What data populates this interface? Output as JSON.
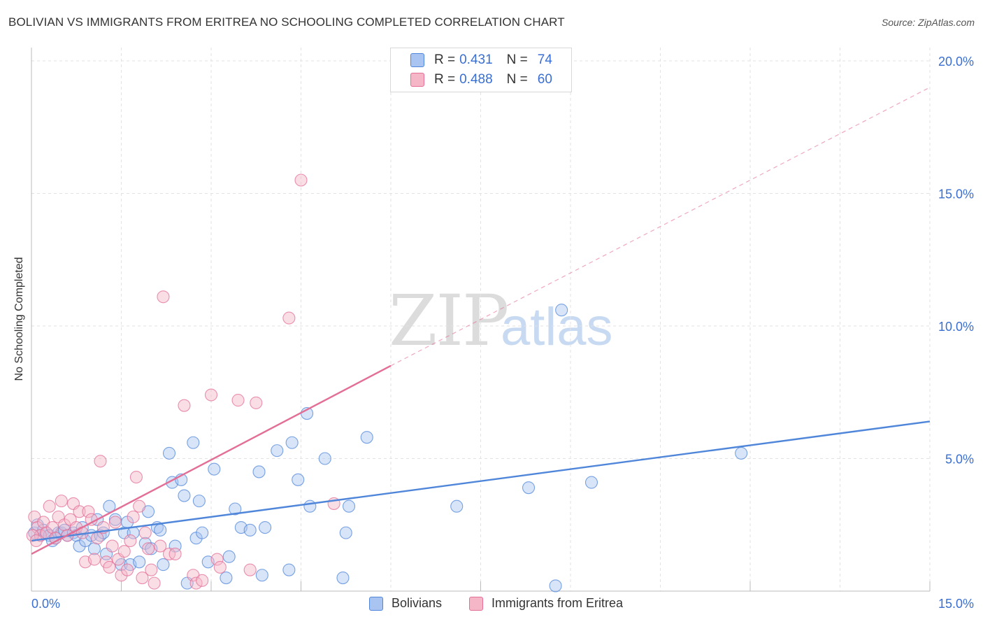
{
  "header": {
    "title": "BOLIVIAN VS IMMIGRANTS FROM ERITREA NO SCHOOLING COMPLETED CORRELATION CHART",
    "source": "Source: ZipAtlas.com"
  },
  "watermark": {
    "zip": "ZIP",
    "atlas": "atlas"
  },
  "legend": {
    "rows": [
      {
        "r_label": "R =",
        "r_value": "0.431",
        "n_label": "N =",
        "n_value": "74",
        "color": "#a9c4f0"
      },
      {
        "r_label": "R =",
        "r_value": "0.488",
        "n_label": "N =",
        "n_value": "60",
        "color": "#f5b6c8"
      }
    ]
  },
  "bottom_legend": {
    "items": [
      {
        "label": "Bolivians",
        "color": "#a9c4f0"
      },
      {
        "label": "Immigrants from Eritrea",
        "color": "#f5b6c8"
      }
    ]
  },
  "chart_data": {
    "type": "scatter",
    "title": "BOLIVIAN VS IMMIGRANTS FROM ERITREA NO SCHOOLING COMPLETED CORRELATION CHART",
    "xlabel": "",
    "ylabel": "No Schooling Completed",
    "xlim": [
      0,
      15
    ],
    "ylim": [
      0,
      20.5
    ],
    "x_tick_labels": [
      "0.0%",
      "15.0%"
    ],
    "y_ticks": [
      5,
      10,
      15,
      20
    ],
    "y_tick_labels": [
      "5.0%",
      "10.0%",
      "15.0%",
      "20.0%"
    ],
    "grid": true,
    "legend_position": "top-center",
    "series": [
      {
        "name": "Bolivians",
        "color": "#4f86d9",
        "fill": "#a9c4f0",
        "trend": {
          "x": [
            0,
            15
          ],
          "y": [
            1.9,
            6.4
          ],
          "style": "solid"
        },
        "points": [
          [
            0.05,
            2.2
          ],
          [
            0.1,
            2.5
          ],
          [
            0.15,
            2.1
          ],
          [
            0.2,
            2.3
          ],
          [
            0.25,
            2.2
          ],
          [
            0.3,
            2.1
          ],
          [
            0.35,
            1.9
          ],
          [
            0.4,
            2.0
          ],
          [
            0.45,
            2.2
          ],
          [
            0.5,
            2.2
          ],
          [
            0.55,
            2.3
          ],
          [
            0.6,
            2.1
          ],
          [
            0.7,
            2.2
          ],
          [
            0.75,
            2.1
          ],
          [
            0.8,
            1.7
          ],
          [
            0.85,
            2.4
          ],
          [
            0.9,
            1.9
          ],
          [
            1.0,
            2.1
          ],
          [
            1.05,
            1.6
          ],
          [
            1.1,
            2.7
          ],
          [
            1.15,
            2.1
          ],
          [
            1.2,
            2.2
          ],
          [
            1.25,
            1.4
          ],
          [
            1.3,
            3.2
          ],
          [
            1.4,
            2.7
          ],
          [
            1.5,
            1.0
          ],
          [
            1.55,
            2.2
          ],
          [
            1.6,
            2.6
          ],
          [
            1.65,
            1.0
          ],
          [
            1.7,
            2.2
          ],
          [
            1.8,
            1.1
          ],
          [
            1.9,
            1.8
          ],
          [
            1.95,
            3.0
          ],
          [
            2.0,
            1.6
          ],
          [
            2.1,
            2.4
          ],
          [
            2.15,
            2.3
          ],
          [
            2.2,
            1.0
          ],
          [
            2.3,
            5.2
          ],
          [
            2.35,
            4.1
          ],
          [
            2.4,
            1.7
          ],
          [
            2.5,
            4.2
          ],
          [
            2.55,
            3.6
          ],
          [
            2.6,
            0.3
          ],
          [
            2.7,
            5.6
          ],
          [
            2.75,
            2.0
          ],
          [
            2.8,
            3.4
          ],
          [
            2.85,
            2.2
          ],
          [
            2.95,
            1.1
          ],
          [
            3.05,
            4.6
          ],
          [
            3.25,
            0.5
          ],
          [
            3.3,
            1.3
          ],
          [
            3.4,
            3.1
          ],
          [
            3.5,
            2.4
          ],
          [
            3.65,
            2.3
          ],
          [
            3.8,
            4.5
          ],
          [
            3.85,
            0.6
          ],
          [
            3.9,
            2.4
          ],
          [
            4.1,
            5.3
          ],
          [
            4.3,
            0.8
          ],
          [
            4.35,
            5.6
          ],
          [
            4.45,
            4.2
          ],
          [
            4.6,
            6.7
          ],
          [
            4.65,
            3.2
          ],
          [
            4.9,
            5.0
          ],
          [
            5.2,
            0.5
          ],
          [
            5.25,
            2.2
          ],
          [
            5.3,
            3.2
          ],
          [
            5.6,
            5.8
          ],
          [
            7.1,
            3.2
          ],
          [
            8.3,
            3.9
          ],
          [
            8.75,
            0.2
          ],
          [
            8.85,
            10.6
          ],
          [
            9.35,
            4.1
          ],
          [
            11.85,
            5.2
          ]
        ]
      },
      {
        "name": "Immigrants from Eritrea",
        "color": "#e36e96",
        "fill": "#f5b6c8",
        "trend": {
          "x": [
            0,
            6.0
          ],
          "y": [
            1.4,
            8.5
          ],
          "style": "solid",
          "extend_to": [
            15,
            19.0
          ],
          "extend_style": "dashed"
        },
        "points": [
          [
            0.05,
            2.8
          ],
          [
            0.1,
            2.4
          ],
          [
            0.15,
            2.1
          ],
          [
            0.2,
            2.6
          ],
          [
            0.25,
            2.2
          ],
          [
            0.3,
            3.2
          ],
          [
            0.35,
            2.4
          ],
          [
            0.4,
            2.0
          ],
          [
            0.45,
            2.8
          ],
          [
            0.5,
            3.4
          ],
          [
            0.55,
            2.5
          ],
          [
            0.6,
            2.1
          ],
          [
            0.65,
            2.7
          ],
          [
            0.7,
            3.3
          ],
          [
            0.75,
            2.4
          ],
          [
            0.8,
            3.0
          ],
          [
            0.85,
            2.2
          ],
          [
            0.9,
            1.1
          ],
          [
            0.95,
            3.0
          ],
          [
            1.0,
            2.7
          ],
          [
            1.05,
            1.2
          ],
          [
            1.1,
            2.0
          ],
          [
            1.15,
            4.9
          ],
          [
            1.2,
            2.4
          ],
          [
            1.25,
            1.1
          ],
          [
            1.3,
            0.9
          ],
          [
            1.35,
            1.7
          ],
          [
            1.4,
            2.6
          ],
          [
            1.45,
            1.2
          ],
          [
            1.5,
            0.6
          ],
          [
            1.55,
            1.5
          ],
          [
            1.6,
            0.8
          ],
          [
            1.65,
            1.9
          ],
          [
            1.7,
            2.8
          ],
          [
            1.75,
            4.3
          ],
          [
            1.8,
            3.2
          ],
          [
            1.85,
            0.5
          ],
          [
            1.9,
            2.2
          ],
          [
            1.95,
            1.6
          ],
          [
            2.0,
            0.8
          ],
          [
            2.05,
            0.3
          ],
          [
            2.15,
            1.7
          ],
          [
            2.2,
            11.1
          ],
          [
            2.3,
            1.4
          ],
          [
            2.4,
            1.4
          ],
          [
            2.55,
            7.0
          ],
          [
            2.7,
            0.6
          ],
          [
            2.75,
            0.3
          ],
          [
            2.85,
            0.4
          ],
          [
            3.0,
            7.4
          ],
          [
            3.1,
            1.2
          ],
          [
            3.15,
            0.9
          ],
          [
            3.45,
            7.2
          ],
          [
            3.75,
            7.1
          ],
          [
            3.65,
            0.8
          ],
          [
            4.3,
            10.3
          ],
          [
            4.5,
            15.5
          ],
          [
            5.05,
            3.3
          ],
          [
            0.02,
            2.1
          ],
          [
            0.08,
            1.9
          ]
        ]
      }
    ]
  }
}
